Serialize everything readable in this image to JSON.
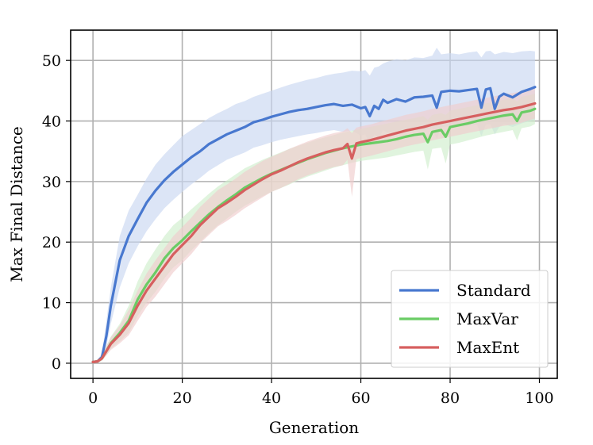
{
  "chart_data": {
    "type": "line",
    "title": "",
    "xlabel": "Generation",
    "ylabel": "Max Final Distance",
    "xlim": [
      -5,
      104
    ],
    "ylim": [
      -2.5,
      55
    ],
    "xticks": [
      0,
      20,
      40,
      60,
      80,
      100
    ],
    "yticks": [
      0,
      10,
      20,
      30,
      40,
      50
    ],
    "grid": true,
    "legend_position": "bottom-right",
    "series": [
      {
        "name": "Standard",
        "color": "#4878cf",
        "band_color": "#c9d7f1",
        "x": [
          0,
          1,
          2,
          3,
          4,
          6,
          8,
          10,
          12,
          14,
          16,
          18,
          20,
          22,
          24,
          26,
          28,
          30,
          32,
          34,
          36,
          38,
          40,
          42,
          44,
          46,
          48,
          50,
          52,
          54,
          56,
          58,
          60,
          61,
          62,
          63,
          64,
          65,
          66,
          68,
          70,
          72,
          74,
          76,
          77,
          78,
          80,
          82,
          84,
          86,
          87,
          88,
          89,
          90,
          91,
          92,
          94,
          96,
          98,
          99
        ],
        "mean": [
          0.2,
          0.3,
          1.0,
          4.5,
          9.5,
          17.0,
          21.0,
          23.8,
          26.5,
          28.5,
          30.2,
          31.6,
          32.8,
          34.0,
          35.0,
          36.2,
          37.0,
          37.8,
          38.4,
          39.0,
          39.8,
          40.2,
          40.7,
          41.1,
          41.5,
          41.8,
          42.0,
          42.3,
          42.6,
          42.8,
          42.5,
          42.7,
          42.1,
          42.3,
          40.8,
          42.5,
          42.0,
          43.5,
          43.0,
          43.6,
          43.2,
          43.9,
          44.0,
          44.2,
          42.2,
          44.8,
          45.0,
          44.9,
          45.1,
          45.3,
          42.2,
          45.2,
          45.4,
          42.0,
          44.0,
          44.5,
          43.9,
          44.8,
          45.3,
          45.6
        ],
        "upper": [
          0.3,
          0.6,
          1.6,
          7.0,
          12.5,
          21.0,
          25.2,
          27.8,
          30.5,
          32.8,
          34.5,
          36.0,
          37.5,
          38.5,
          39.5,
          40.5,
          41.3,
          42.0,
          42.8,
          43.3,
          44.0,
          44.5,
          45.0,
          45.5,
          46.0,
          46.4,
          46.8,
          47.1,
          47.5,
          47.8,
          48.0,
          48.3,
          48.2,
          48.4,
          47.5,
          48.8,
          49.0,
          49.5,
          49.8,
          50.2,
          50.0,
          50.5,
          50.4,
          50.8,
          52.1,
          51.0,
          51.2,
          51.0,
          51.3,
          51.5,
          50.5,
          51.5,
          51.6,
          51.0,
          51.2,
          51.4,
          51.2,
          51.5,
          51.6,
          51.5
        ],
        "lower": [
          0.1,
          0.1,
          0.5,
          2.8,
          6.5,
          12.5,
          16.5,
          19.3,
          21.8,
          23.8,
          25.6,
          27.0,
          28.3,
          29.5,
          30.6,
          31.8,
          32.7,
          33.6,
          34.2,
          34.8,
          35.6,
          36.0,
          36.5,
          36.9,
          37.2,
          37.5,
          37.8,
          38.0,
          38.3,
          38.5,
          38.2,
          38.4,
          37.6,
          37.8,
          36.0,
          37.8,
          37.2,
          38.5,
          38.0,
          38.5,
          38.0,
          38.6,
          38.5,
          38.8,
          37.0,
          39.0,
          39.1,
          39.0,
          39.2,
          39.4,
          37.5,
          39.4,
          39.5,
          37.8,
          39.0,
          39.5,
          39.0,
          39.6,
          40.0,
          40.2
        ]
      },
      {
        "name": "MaxVar",
        "color": "#6acc65",
        "band_color": "#cfeecd",
        "x": [
          0,
          1,
          2,
          3,
          4,
          6,
          8,
          10,
          12,
          14,
          16,
          18,
          20,
          22,
          24,
          26,
          28,
          30,
          32,
          34,
          36,
          38,
          40,
          42,
          44,
          46,
          48,
          50,
          52,
          54,
          56,
          58,
          60,
          62,
          64,
          66,
          68,
          70,
          72,
          74,
          75,
          76,
          78,
          79,
          80,
          82,
          84,
          86,
          88,
          90,
          92,
          94,
          95,
          96,
          98,
          99
        ],
        "mean": [
          0.2,
          0.3,
          0.8,
          2.0,
          3.3,
          5.0,
          7.0,
          10.5,
          13.0,
          15.0,
          17.3,
          19.0,
          20.3,
          21.8,
          23.2,
          24.6,
          25.8,
          26.9,
          27.9,
          29.0,
          29.8,
          30.6,
          31.3,
          31.9,
          32.5,
          33.1,
          33.7,
          34.2,
          34.7,
          35.1,
          35.5,
          35.8,
          36.1,
          36.3,
          36.5,
          36.7,
          37.0,
          37.4,
          37.7,
          37.9,
          36.5,
          38.2,
          38.5,
          37.4,
          39.0,
          39.3,
          39.6,
          40.0,
          40.3,
          40.6,
          40.9,
          41.1,
          40.0,
          41.4,
          41.7,
          42.0
        ],
        "upper": [
          0.3,
          0.5,
          1.2,
          2.8,
          4.4,
          6.5,
          9.5,
          13.5,
          16.5,
          18.8,
          21.0,
          22.8,
          24.0,
          25.4,
          26.7,
          28.0,
          29.2,
          30.2,
          31.2,
          32.2,
          32.9,
          33.6,
          34.2,
          34.8,
          35.4,
          35.9,
          36.4,
          36.9,
          37.3,
          37.7,
          38.1,
          38.4,
          38.7,
          39.0,
          39.3,
          39.6,
          39.9,
          40.2,
          40.5,
          40.8,
          40.2,
          41.0,
          41.3,
          41.0,
          41.7,
          42.0,
          42.3,
          42.6,
          42.9,
          43.2,
          43.5,
          43.8,
          43.2,
          44.0,
          44.3,
          44.5
        ],
        "lower": [
          0.1,
          0.1,
          0.4,
          1.3,
          2.4,
          3.6,
          5.0,
          7.8,
          10.0,
          11.8,
          14.0,
          15.8,
          17.0,
          18.6,
          20.0,
          21.5,
          22.8,
          23.9,
          25.0,
          26.0,
          26.8,
          27.6,
          28.3,
          28.9,
          29.5,
          30.2,
          30.8,
          31.3,
          31.8,
          32.3,
          32.7,
          33.1,
          33.4,
          33.6,
          33.8,
          34.0,
          34.3,
          34.6,
          34.9,
          35.1,
          32.0,
          35.4,
          35.6,
          33.0,
          36.1,
          36.4,
          36.8,
          37.2,
          37.6,
          37.9,
          38.2,
          38.5,
          36.8,
          38.8,
          39.1,
          39.5
        ]
      },
      {
        "name": "MaxEnt",
        "color": "#d65f5f",
        "band_color": "#f0cccc",
        "x": [
          0,
          1,
          2,
          3,
          4,
          6,
          8,
          10,
          12,
          14,
          16,
          18,
          20,
          22,
          24,
          26,
          28,
          30,
          32,
          34,
          36,
          38,
          40,
          42,
          44,
          46,
          48,
          50,
          52,
          54,
          56,
          57,
          58,
          59,
          60,
          62,
          64,
          66,
          68,
          70,
          72,
          74,
          76,
          78,
          80,
          82,
          84,
          86,
          88,
          90,
          92,
          94,
          96,
          98,
          99
        ],
        "mean": [
          0.2,
          0.3,
          0.8,
          2.0,
          3.2,
          4.7,
          6.6,
          9.5,
          12.0,
          14.0,
          16.0,
          18.0,
          19.5,
          21.0,
          22.8,
          24.2,
          25.6,
          26.5,
          27.5,
          28.6,
          29.5,
          30.4,
          31.2,
          31.8,
          32.5,
          33.2,
          33.8,
          34.3,
          34.8,
          35.2,
          35.5,
          36.2,
          33.8,
          36.3,
          36.5,
          36.8,
          37.2,
          37.6,
          38.0,
          38.4,
          38.7,
          39.0,
          39.4,
          39.7,
          40.0,
          40.3,
          40.6,
          40.9,
          41.2,
          41.5,
          41.8,
          42.0,
          42.3,
          42.7,
          42.9
        ],
        "upper": [
          0.3,
          0.5,
          1.2,
          2.8,
          4.3,
          6.2,
          8.8,
          12.0,
          14.8,
          17.0,
          19.0,
          21.0,
          22.5,
          24.0,
          25.8,
          27.2,
          28.6,
          29.5,
          30.5,
          31.6,
          32.5,
          33.4,
          34.1,
          34.7,
          35.4,
          36.0,
          36.6,
          37.1,
          37.6,
          38.0,
          38.3,
          38.8,
          38.0,
          38.9,
          39.1,
          39.4,
          39.8,
          40.2,
          40.6,
          41.0,
          41.3,
          41.6,
          42.0,
          42.3,
          42.6,
          42.9,
          43.2,
          43.5,
          43.8,
          44.1,
          44.4,
          44.6,
          44.9,
          45.2,
          45.4
        ],
        "lower": [
          0.1,
          0.1,
          0.4,
          1.3,
          2.2,
          3.3,
          4.6,
          7.0,
          9.3,
          11.0,
          13.0,
          15.0,
          16.5,
          18.0,
          19.8,
          21.2,
          22.6,
          23.5,
          24.5,
          25.6,
          26.5,
          27.4,
          28.3,
          28.9,
          29.6,
          30.4,
          31.0,
          31.5,
          32.0,
          32.4,
          32.7,
          33.6,
          27.5,
          33.7,
          33.9,
          34.2,
          34.6,
          35.0,
          35.4,
          35.8,
          36.1,
          36.4,
          36.8,
          37.1,
          37.4,
          37.7,
          38.0,
          38.3,
          38.6,
          38.9,
          39.2,
          39.4,
          39.7,
          40.2,
          40.4
        ]
      }
    ]
  }
}
